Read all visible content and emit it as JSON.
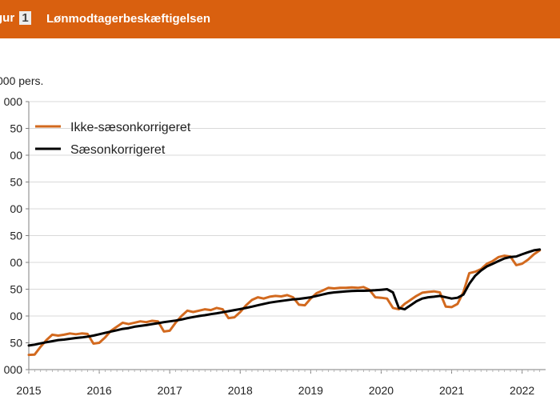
{
  "header": {
    "figure_label": "gur",
    "figure_number": "1",
    "title": "Lønmodtagerbeskæftigelsen",
    "color": "#d9600f"
  },
  "chart_data": {
    "type": "line",
    "ylabel": "000 pers.",
    "y_tick_labels": [
      "000",
      "50",
      "00",
      "50",
      "00",
      "50",
      "00",
      "50",
      "00",
      "50",
      "000"
    ],
    "x_tick_labels": [
      "2015",
      "2016",
      "2017",
      "2018",
      "2019",
      "2020",
      "2021",
      "2022"
    ],
    "grid": true,
    "legend": "top-left",
    "series": [
      {
        "name": "Ikke-sæsonkorrigeret",
        "color": "#d2691e",
        "x": [
          2015.0,
          2015.083,
          2015.167,
          2015.25,
          2015.333,
          2015.417,
          2015.5,
          2015.583,
          2015.667,
          2015.75,
          2015.833,
          2015.917,
          2016.0,
          2016.083,
          2016.167,
          2016.25,
          2016.333,
          2016.417,
          2016.5,
          2016.583,
          2016.667,
          2016.75,
          2016.833,
          2016.917,
          2017.0,
          2017.083,
          2017.167,
          2017.25,
          2017.333,
          2017.417,
          2017.5,
          2017.583,
          2017.667,
          2017.75,
          2017.833,
          2017.917,
          2018.0,
          2018.083,
          2018.167,
          2018.25,
          2018.333,
          2018.417,
          2018.5,
          2018.583,
          2018.667,
          2018.75,
          2018.833,
          2018.917,
          2019.0,
          2019.083,
          2019.167,
          2019.25,
          2019.333,
          2019.417,
          2019.5,
          2019.583,
          2019.667,
          2019.75,
          2019.833,
          2019.917,
          2020.0,
          2020.083,
          2020.167,
          2020.25,
          2020.333,
          2020.417,
          2020.5,
          2020.583,
          2020.667,
          2020.75,
          2020.833,
          2020.917,
          2021.0,
          2021.083,
          2021.167,
          2021.25,
          2021.333,
          2021.417,
          2021.5,
          2021.583,
          2021.667,
          2021.75,
          2021.833,
          2021.917,
          2022.0,
          2022.083,
          2022.167,
          2022.25
        ],
        "values": [
          0.55,
          0.56,
          0.85,
          1.1,
          1.3,
          1.27,
          1.3,
          1.35,
          1.32,
          1.35,
          1.33,
          0.97,
          1.0,
          1.2,
          1.45,
          1.6,
          1.75,
          1.7,
          1.75,
          1.8,
          1.77,
          1.82,
          1.8,
          1.42,
          1.45,
          1.75,
          2.0,
          2.2,
          2.15,
          2.2,
          2.25,
          2.22,
          2.3,
          2.25,
          1.92,
          1.95,
          2.15,
          2.4,
          2.6,
          2.7,
          2.65,
          2.72,
          2.75,
          2.73,
          2.78,
          2.7,
          2.42,
          2.4,
          2.65,
          2.85,
          2.95,
          3.05,
          3.03,
          3.05,
          3.05,
          3.07,
          3.05,
          3.08,
          2.98,
          2.7,
          2.68,
          2.65,
          2.3,
          2.25,
          2.45,
          2.6,
          2.75,
          2.87,
          2.9,
          2.92,
          2.88,
          2.35,
          2.33,
          2.45,
          2.9,
          3.6,
          3.65,
          3.75,
          3.95,
          4.05,
          4.2,
          4.25,
          4.22,
          3.9,
          3.95,
          4.1,
          4.3,
          4.45
        ]
      },
      {
        "name": "Sæsonkorrigeret",
        "color": "#000000",
        "x": [
          2015.0,
          2015.083,
          2015.167,
          2015.25,
          2015.333,
          2015.417,
          2015.5,
          2015.583,
          2015.667,
          2015.75,
          2015.833,
          2015.917,
          2016.0,
          2016.083,
          2016.167,
          2016.25,
          2016.333,
          2016.417,
          2016.5,
          2016.583,
          2016.667,
          2016.75,
          2016.833,
          2016.917,
          2017.0,
          2017.083,
          2017.167,
          2017.25,
          2017.333,
          2017.417,
          2017.5,
          2017.583,
          2017.667,
          2017.75,
          2017.833,
          2017.917,
          2018.0,
          2018.083,
          2018.167,
          2018.25,
          2018.333,
          2018.417,
          2018.5,
          2018.583,
          2018.667,
          2018.75,
          2018.833,
          2018.917,
          2019.0,
          2019.083,
          2019.167,
          2019.25,
          2019.333,
          2019.417,
          2019.5,
          2019.583,
          2019.667,
          2019.75,
          2019.833,
          2019.917,
          2020.0,
          2020.083,
          2020.167,
          2020.25,
          2020.333,
          2020.417,
          2020.5,
          2020.583,
          2020.667,
          2020.75,
          2020.833,
          2020.917,
          2021.0,
          2021.083,
          2021.167,
          2021.25,
          2021.333,
          2021.417,
          2021.5,
          2021.583,
          2021.667,
          2021.75,
          2021.833,
          2021.917,
          2022.0,
          2022.083,
          2022.167,
          2022.25
        ],
        "values": [
          0.9,
          0.93,
          0.98,
          1.02,
          1.06,
          1.1,
          1.12,
          1.15,
          1.18,
          1.2,
          1.23,
          1.27,
          1.32,
          1.37,
          1.42,
          1.47,
          1.52,
          1.55,
          1.6,
          1.63,
          1.66,
          1.7,
          1.73,
          1.77,
          1.8,
          1.83,
          1.87,
          1.92,
          1.96,
          2.0,
          2.03,
          2.07,
          2.1,
          2.14,
          2.18,
          2.22,
          2.26,
          2.3,
          2.35,
          2.4,
          2.45,
          2.5,
          2.53,
          2.56,
          2.59,
          2.62,
          2.64,
          2.67,
          2.7,
          2.75,
          2.8,
          2.85,
          2.88,
          2.9,
          2.92,
          2.93,
          2.94,
          2.94,
          2.95,
          2.96,
          2.98,
          3.0,
          2.88,
          2.3,
          2.25,
          2.4,
          2.55,
          2.65,
          2.7,
          2.72,
          2.75,
          2.7,
          2.65,
          2.68,
          2.8,
          3.2,
          3.5,
          3.7,
          3.85,
          3.95,
          4.05,
          4.15,
          4.2,
          4.22,
          4.3,
          4.38,
          4.45,
          4.48
        ]
      }
    ]
  }
}
